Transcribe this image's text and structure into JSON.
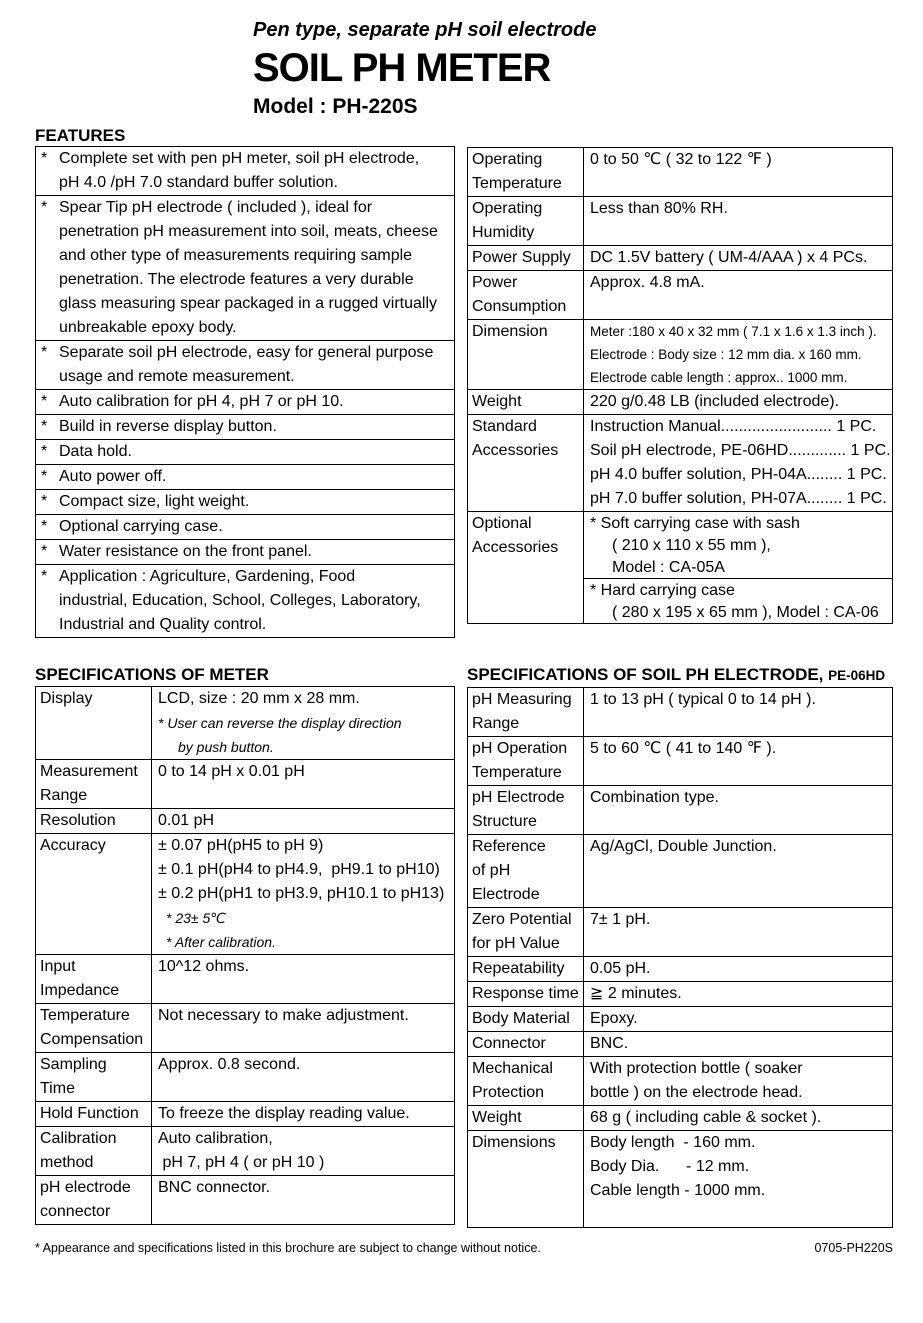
{
  "header": {
    "tagline": "Pen type, separate pH soil electrode",
    "title": "SOIL PH METER",
    "model": "Model : PH-220S"
  },
  "features": {
    "heading": "FEATURES",
    "items": [
      "Complete set with pen pH meter, soil pH electrode,\npH 4.0 /pH 7.0 standard buffer solution.",
      "Spear Tip pH electrode ( included ), ideal for\npenetration pH measurement into soil, meats, cheese\nand other type of measurements requiring sample\npenetration. The electrode features a very durable\nglass measuring spear packaged in a rugged virtually\nunbreakable epoxy body.",
      "Separate soil pH electrode, easy for general purpose\nusage and remote measurement.",
      "Auto calibration for pH 4, pH 7 or pH 10.",
      "Build in reverse display button.",
      "Data hold.",
      "Auto power off.",
      "Compact size, light weight.",
      "Optional carrying case.",
      "Water resistance on the front panel.",
      "Application : Agriculture, Gardening, Food\nindustrial, Education, School, Colleges, Laboratory,\nIndustrial and Quality control."
    ]
  },
  "general_specs": {
    "rows": [
      {
        "label": "Operating\nTemperature",
        "value": "0 to 50 ℃ ( 32 to 122 ℉ )"
      },
      {
        "label": "Operating\nHumidity",
        "value": "Less than 80% RH."
      },
      {
        "label": "Power Supply",
        "value": "DC 1.5V battery ( UM-4/AAA ) x 4 PCs."
      },
      {
        "label": "Power\nConsumption",
        "value": "Approx. 4.8 mA."
      },
      {
        "label": "Dimension",
        "lines": [
          {
            "t": "Meter :180 x 40 x 32 mm ( 7.1 x 1.6 x 1.3 inch ).",
            "c": "sm"
          },
          {
            "t": "Electrode : Body size : 12 mm dia. x 160 mm.",
            "c": "sm"
          },
          {
            "t": "Electrode cable length : approx.. 1000 mm.",
            "c": "sm"
          }
        ]
      },
      {
        "label": "Weight",
        "value": "220 g/0.48 LB (included electrode)."
      },
      {
        "label": "Standard\nAccessories",
        "value": "Instruction Manual......................... 1 PC.\nSoil pH electrode, PE-06HD............. 1 PC.\npH 4.0 buffer solution, PH-04A........ 1 PC.\npH 7.0 buffer solution, PH-07A........ 1 PC."
      },
      {
        "label": "Optional\nAccessories",
        "lines": [
          {
            "t": "* Soft carrying case with sash",
            "c": "tight"
          },
          {
            "t": "( 210 x 110 x 55 mm ),",
            "c": "tight ind"
          },
          {
            "t": "Model : CA-05A",
            "c": "tight ind"
          },
          {
            "t": "* Hard carrying case",
            "c": "tight rule"
          },
          {
            "t": "( 280 x 195 x 65 mm ), Model : CA-06",
            "c": "tight ind"
          }
        ]
      }
    ]
  },
  "specs_meter": {
    "heading": "SPECIFICATIONS OF METER",
    "rows": [
      {
        "label": "Display",
        "lines": [
          {
            "t": "LCD, size : 20 mm x 28 mm."
          },
          {
            "t": "* User can reverse the display direction",
            "c": "it"
          },
          {
            "t": "by push button.",
            "c": "it ind2"
          }
        ]
      },
      {
        "label": "Measurement\nRange",
        "value": "0 to 14 pH x 0.01 pH"
      },
      {
        "label": "Resolution",
        "value": "0.01 pH"
      },
      {
        "label": "Accuracy",
        "lines": [
          {
            "t": "± 0.07 pH(pH5 to pH 9)"
          },
          {
            "t": "± 0.1 pH(pH4 to pH4.9,  pH9.1 to pH10)"
          },
          {
            "t": "± 0.2 pH(pH1 to pH3.9, pH10.1 to pH13)"
          },
          {
            "t": "* 23± 5℃",
            "c": "it2"
          },
          {
            "t": "* After calibration.",
            "c": "it2"
          }
        ]
      },
      {
        "label": "Input\nImpedance",
        "value": "10^12 ohms."
      },
      {
        "label": "Temperature\nCompensation",
        "value": "Not necessary to make adjustment."
      },
      {
        "label": "Sampling\nTime",
        "value": "Approx. 0.8 second."
      },
      {
        "label": "Hold Function",
        "value": "To freeze the display reading value."
      },
      {
        "label": "Calibration\nmethod",
        "value": "Auto calibration,\n pH 7, pH 4 ( or pH 10 )"
      },
      {
        "label": "pH electrode\nconnector",
        "value": "BNC connector."
      }
    ]
  },
  "specs_electrode": {
    "heading": "SPECIFICATIONS OF SOIL PH ELECTRODE,",
    "heading_suffix": "PE-06HD",
    "rows": [
      {
        "label": "pH Measuring\nRange",
        "value": "1 to 13 pH ( typical 0 to 14 pH )."
      },
      {
        "label": "pH Operation\nTemperature",
        "value": "5 to 60 ℃ ( 41 to 140 ℉ )."
      },
      {
        "label": "pH Electrode\nStructure",
        "value": "Combination type."
      },
      {
        "label": "Reference\nof pH\nElectrode",
        "value": "Ag/AgCl, Double Junction."
      },
      {
        "label": "Zero Potential\nfor pH Value",
        "value": "7± 1 pH."
      },
      {
        "label": "Repeatability",
        "value": "0.05 pH."
      },
      {
        "label": "Response time",
        "value": "≧ 2 minutes."
      },
      {
        "label": "Body Material",
        "value": "Epoxy."
      },
      {
        "label": "Connector",
        "value": "BNC."
      },
      {
        "label": "Mechanical\nProtection",
        "value": "With protection bottle ( soaker\nbottle ) on the electrode head."
      },
      {
        "label": "Weight",
        "value": "68 g ( including cable & socket )."
      },
      {
        "label": "Dimensions",
        "lines": [
          {
            "t": "Body length  - 160 mm."
          },
          {
            "t": "Body Dia.      - 12 mm."
          },
          {
            "t": "Cable length - 1000 mm."
          },
          {
            "t": ""
          }
        ]
      }
    ]
  },
  "footer": {
    "note": "* Appearance and specifications listed in this brochure are subject to change without notice.",
    "code": "0705-PH220S"
  }
}
